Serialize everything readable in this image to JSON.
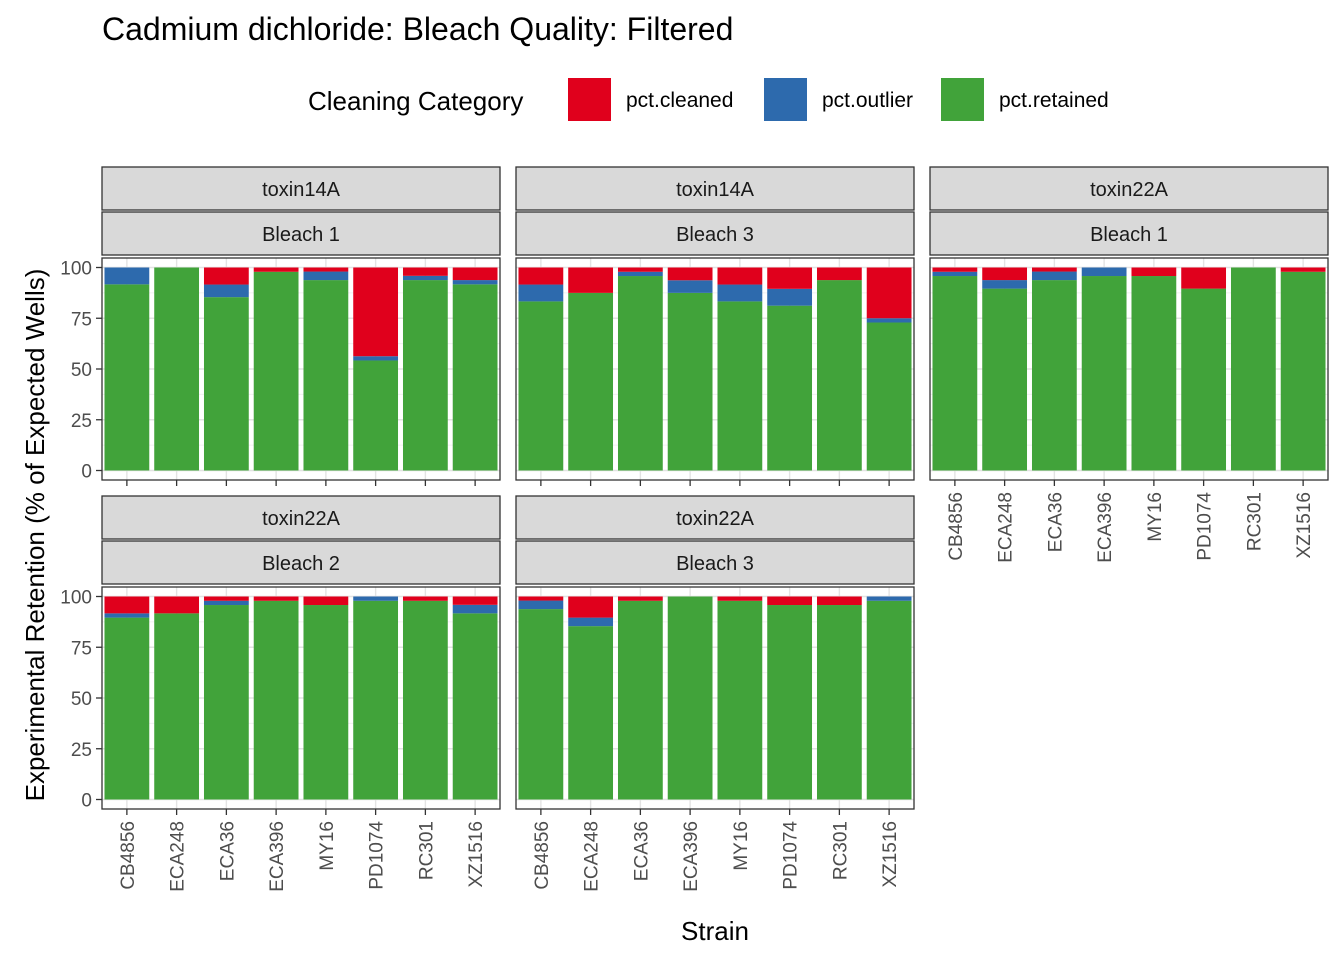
{
  "chart_data": {
    "type": "bar",
    "stacked": true,
    "title": "Cadmium dichloride: Bleach Quality: Filtered",
    "xlabel": "Strain",
    "ylabel": "Experimental Retention (% of Expected Wells)",
    "ylim": [
      0,
      100
    ],
    "yticks": [
      "0",
      "25",
      "50",
      "75",
      "100"
    ],
    "legend": {
      "title": "Cleaning Category",
      "position": "top",
      "entries": [
        {
          "key": "pct.cleaned",
          "label": "pct.cleaned",
          "color": "#E0001C"
        },
        {
          "key": "pct.outlier",
          "label": "pct.outlier",
          "color": "#2D6AAD"
        },
        {
          "key": "pct.retained",
          "label": "pct.retained",
          "color": "#41A33A"
        }
      ]
    },
    "categories": [
      "CB4856",
      "ECA248",
      "ECA36",
      "ECA396",
      "MY16",
      "PD1074",
      "RC301",
      "XZ1516"
    ],
    "panels": [
      {
        "strip1": "toxin14A",
        "strip2": "Bleach 1",
        "retained": [
          91.7,
          100,
          85.4,
          97.9,
          93.8,
          54.2,
          93.8,
          91.7
        ],
        "outlier": [
          8.3,
          0,
          6.2,
          0,
          4.2,
          2.1,
          2.1,
          2.1
        ],
        "cleaned": [
          0,
          0,
          8.4,
          2.1,
          2.0,
          43.7,
          4.1,
          6.2
        ]
      },
      {
        "strip1": "toxin14A",
        "strip2": "Bleach 3",
        "retained": [
          83.3,
          87.5,
          95.8,
          87.5,
          83.3,
          81.2,
          93.8,
          72.9
        ],
        "outlier": [
          8.3,
          0,
          2.1,
          6.2,
          8.3,
          8.3,
          0,
          2.1
        ],
        "cleaned": [
          8.4,
          12.5,
          2.1,
          6.3,
          8.4,
          10.5,
          6.2,
          25.0
        ]
      },
      {
        "strip1": "toxin22A",
        "strip2": "Bleach 1",
        "retained": [
          95.8,
          89.6,
          93.8,
          95.8,
          95.8,
          89.6,
          100,
          97.9
        ],
        "outlier": [
          2.1,
          4.2,
          4.2,
          4.2,
          0,
          0,
          0,
          0
        ],
        "cleaned": [
          2.1,
          6.2,
          2.0,
          0,
          4.2,
          10.4,
          0,
          2.1
        ]
      },
      {
        "strip1": "toxin22A",
        "strip2": "Bleach 2",
        "retained": [
          89.6,
          91.7,
          95.8,
          97.9,
          95.8,
          97.9,
          97.9,
          91.7
        ],
        "outlier": [
          2.1,
          0,
          2.1,
          0,
          0,
          2.1,
          0,
          4.2
        ],
        "cleaned": [
          8.3,
          8.3,
          2.1,
          2.1,
          4.2,
          0,
          2.1,
          4.1
        ]
      },
      {
        "strip1": "toxin22A",
        "strip2": "Bleach 3",
        "retained": [
          93.8,
          85.4,
          97.9,
          100,
          97.9,
          95.8,
          95.8,
          97.9
        ],
        "outlier": [
          4.2,
          4.2,
          0,
          0,
          0,
          0,
          0,
          2.1
        ],
        "cleaned": [
          2.0,
          10.4,
          2.1,
          0,
          2.1,
          4.2,
          4.2,
          0
        ]
      }
    ]
  }
}
